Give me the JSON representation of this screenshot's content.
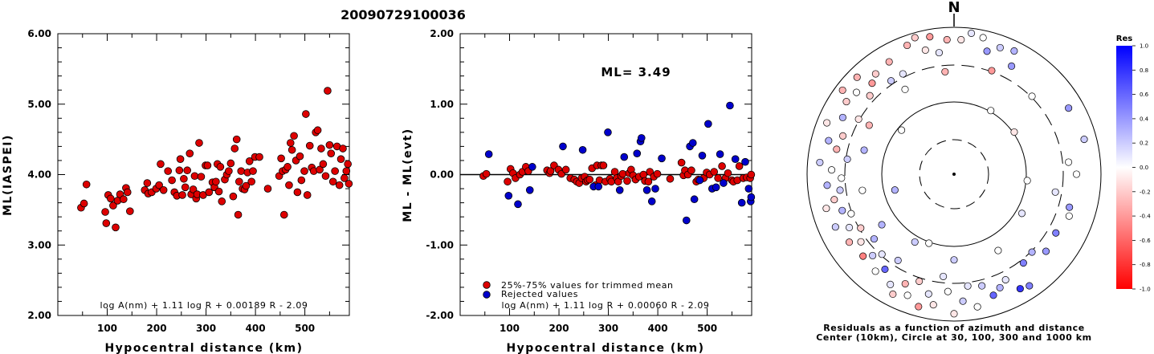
{
  "event_id": "20090729100036",
  "chart_data": [
    {
      "type": "scatter",
      "panel": "left",
      "xlabel": "Hypocentral distance (km)",
      "ylabel": "ML(IASPEI)",
      "xlim": [
        0,
        590
      ],
      "ylim": [
        2.0,
        6.0
      ],
      "xticks": [
        "100",
        "200",
        "300",
        "400",
        "500"
      ],
      "yticks": [
        "2.00",
        "3.00",
        "4.00",
        "5.00",
        "6.00"
      ],
      "formula": "log A(nm) + 1.11 log R + 0.00189 R - 2.09",
      "marker_color": "#dd0000",
      "points": [
        [
          47,
          3.53
        ],
        [
          53,
          3.59
        ],
        [
          58,
          3.86
        ],
        [
          96,
          3.47
        ],
        [
          98,
          3.31
        ],
        [
          102,
          3.71
        ],
        [
          107,
          3.66
        ],
        [
          112,
          3.56
        ],
        [
          117,
          3.25
        ],
        [
          121,
          3.63
        ],
        [
          126,
          3.72
        ],
        [
          133,
          3.65
        ],
        [
          138,
          3.81
        ],
        [
          141,
          3.75
        ],
        [
          146,
          3.48
        ],
        [
          176,
          3.78
        ],
        [
          181,
          3.88
        ],
        [
          183,
          3.73
        ],
        [
          190,
          3.75
        ],
        [
          199,
          3.8
        ],
        [
          205,
          3.85
        ],
        [
          208,
          4.15
        ],
        [
          214,
          3.78
        ],
        [
          223,
          4.05
        ],
        [
          231,
          3.92
        ],
        [
          236,
          3.75
        ],
        [
          241,
          3.7
        ],
        [
          246,
          4.06
        ],
        [
          248,
          4.22
        ],
        [
          252,
          3.71
        ],
        [
          255,
          3.94
        ],
        [
          258,
          3.82
        ],
        [
          262,
          4.06
        ],
        [
          267,
          4.3
        ],
        [
          270,
          3.72
        ],
        [
          274,
          3.79
        ],
        [
          277,
          3.98
        ],
        [
          280,
          3.66
        ],
        [
          282,
          3.72
        ],
        [
          286,
          4.45
        ],
        [
          290,
          3.97
        ],
        [
          294,
          3.71
        ],
        [
          299,
          4.13
        ],
        [
          303,
          4.13
        ],
        [
          306,
          3.75
        ],
        [
          313,
          3.89
        ],
        [
          317,
          3.82
        ],
        [
          320,
          3.9
        ],
        [
          323,
          4.15
        ],
        [
          326,
          3.76
        ],
        [
          329,
          4.11
        ],
        [
          332,
          3.62
        ],
        [
          338,
          3.93
        ],
        [
          342,
          4.0
        ],
        [
          346,
          4.05
        ],
        [
          350,
          4.16
        ],
        [
          355,
          3.69
        ],
        [
          358,
          4.37
        ],
        [
          362,
          4.5
        ],
        [
          365,
          3.43
        ],
        [
          367,
          3.9
        ],
        [
          371,
          4.05
        ],
        [
          374,
          3.8
        ],
        [
          378,
          3.79
        ],
        [
          381,
          3.84
        ],
        [
          384,
          4.03
        ],
        [
          388,
          4.19
        ],
        [
          392,
          3.9
        ],
        [
          395,
          4.05
        ],
        [
          399,
          4.25
        ],
        [
          408,
          4.25
        ],
        [
          425,
          3.8
        ],
        [
          448,
          3.98
        ],
        [
          452,
          4.23
        ],
        [
          455,
          4.05
        ],
        [
          458,
          3.43
        ],
        [
          461,
          4.07
        ],
        [
          465,
          4.11
        ],
        [
          468,
          3.85
        ],
        [
          471,
          4.45
        ],
        [
          474,
          4.35
        ],
        [
          478,
          4.55
        ],
        [
          482,
          4.2
        ],
        [
          485,
          3.75
        ],
        [
          490,
          4.26
        ],
        [
          493,
          3.92
        ],
        [
          499,
          4.05
        ],
        [
          502,
          4.86
        ],
        [
          505,
          3.71
        ],
        [
          510,
          4.41
        ],
        [
          514,
          4.1
        ],
        [
          518,
          4.05
        ],
        [
          522,
          4.6
        ],
        [
          526,
          4.63
        ],
        [
          530,
          4.07
        ],
        [
          533,
          4.37
        ],
        [
          537,
          4.15
        ],
        [
          542,
          3.98
        ],
        [
          546,
          5.19
        ],
        [
          550,
          4.42
        ],
        [
          553,
          4.3
        ],
        [
          557,
          3.9
        ],
        [
          561,
          4.05
        ],
        [
          565,
          4.4
        ],
        [
          570,
          3.85
        ],
        [
          573,
          4.22
        ],
        [
          577,
          4.37
        ],
        [
          580,
          3.95
        ],
        [
          584,
          4.05
        ],
        [
          587,
          4.15
        ],
        [
          589,
          3.87
        ]
      ]
    },
    {
      "type": "scatter",
      "panel": "middle",
      "xlabel": "Hypocentral distance (km)",
      "ylabel": "ML - ML(evt)",
      "xlim": [
        0,
        590
      ],
      "ylim": [
        -2.0,
        2.0
      ],
      "xticks": [
        "100",
        "200",
        "300",
        "400",
        "500"
      ],
      "yticks": [
        "-2.00",
        "-1.00",
        "0.00",
        "1.00",
        "2.00"
      ],
      "ml_label": "ML= 3.49",
      "formula": "log A(nm) + 1.11 log R + 0.00060 R - 2.09",
      "legend": [
        "25%-75% values for trimmed mean",
        "Rejected values"
      ],
      "legend_placement": "bottom-left",
      "zero_line": true,
      "colors": {
        "kept": "#dd0000",
        "rejected": "#0000cc"
      },
      "kept": [
        [
          47,
          -0.02
        ],
        [
          53,
          0.01
        ],
        [
          96,
          -0.1
        ],
        [
          102,
          0.08
        ],
        [
          107,
          0.02
        ],
        [
          112,
          -0.05
        ],
        [
          121,
          0.0
        ],
        [
          126,
          0.04
        ],
        [
          133,
          0.11
        ],
        [
          138,
          0.05
        ],
        [
          176,
          0.06
        ],
        [
          181,
          0.02
        ],
        [
          183,
          0.05
        ],
        [
          190,
          0.13
        ],
        [
          199,
          0.07
        ],
        [
          205,
          0.01
        ],
        [
          214,
          0.07
        ],
        [
          223,
          -0.05
        ],
        [
          231,
          -0.07
        ],
        [
          236,
          -0.1
        ],
        [
          241,
          -0.12
        ],
        [
          246,
          -0.05
        ],
        [
          252,
          -0.03
        ],
        [
          255,
          -0.1
        ],
        [
          258,
          -0.08
        ],
        [
          262,
          -0.07
        ],
        [
          267,
          0.09
        ],
        [
          274,
          -0.15
        ],
        [
          277,
          0.13
        ],
        [
          282,
          -0.08
        ],
        [
          286,
          0.13
        ],
        [
          290,
          0.13
        ],
        [
          294,
          -0.1
        ],
        [
          303,
          -0.06
        ],
        [
          306,
          -0.1
        ],
        [
          313,
          0.04
        ],
        [
          317,
          -0.05
        ],
        [
          320,
          -0.1
        ],
        [
          326,
          -0.02
        ],
        [
          329,
          0.01
        ],
        [
          338,
          -0.09
        ],
        [
          342,
          0.02
        ],
        [
          346,
          0.07
        ],
        [
          350,
          -0.01
        ],
        [
          355,
          -0.07
        ],
        [
          362,
          -0.03
        ],
        [
          371,
          0.0
        ],
        [
          374,
          -0.09
        ],
        [
          381,
          -0.1
        ],
        [
          384,
          0.04
        ],
        [
          392,
          -0.03
        ],
        [
          399,
          0.01
        ],
        [
          425,
          -0.06
        ],
        [
          448,
          0.17
        ],
        [
          452,
          -0.01
        ],
        [
          455,
          0.06
        ],
        [
          461,
          0.0
        ],
        [
          468,
          0.06
        ],
        [
          478,
          -0.1
        ],
        [
          482,
          -0.07
        ],
        [
          493,
          -0.05
        ],
        [
          499,
          0.03
        ],
        [
          505,
          0.0
        ],
        [
          514,
          0.04
        ],
        [
          522,
          -0.05
        ],
        [
          530,
          0.12
        ],
        [
          537,
          -0.05
        ],
        [
          542,
          0.02
        ],
        [
          550,
          -0.08
        ],
        [
          553,
          -0.1
        ],
        [
          561,
          -0.08
        ],
        [
          565,
          0.12
        ],
        [
          573,
          -0.05
        ],
        [
          580,
          -0.04
        ],
        [
          587,
          -0.05
        ],
        [
          589,
          0.0
        ]
      ],
      "rejected": [
        [
          58,
          0.29
        ],
        [
          98,
          -0.3
        ],
        [
          117,
          -0.42
        ],
        [
          141,
          -0.22
        ],
        [
          146,
          0.11
        ],
        [
          208,
          0.4
        ],
        [
          248,
          0.35
        ],
        [
          270,
          -0.17
        ],
        [
          280,
          -0.17
        ],
        [
          299,
          0.6
        ],
        [
          323,
          -0.22
        ],
        [
          332,
          0.25
        ],
        [
          358,
          0.3
        ],
        [
          365,
          0.47
        ],
        [
          367,
          0.52
        ],
        [
          378,
          -0.22
        ],
        [
          388,
          -0.38
        ],
        [
          395,
          -0.2
        ],
        [
          408,
          0.23
        ],
        [
          458,
          -0.65
        ],
        [
          465,
          0.4
        ],
        [
          471,
          0.45
        ],
        [
          474,
          -0.35
        ],
        [
          485,
          -0.08
        ],
        [
          490,
          0.27
        ],
        [
          502,
          0.72
        ],
        [
          510,
          -0.2
        ],
        [
          518,
          -0.18
        ],
        [
          526,
          0.29
        ],
        [
          533,
          -0.12
        ],
        [
          546,
          0.98
        ],
        [
          557,
          0.22
        ],
        [
          570,
          -0.4
        ],
        [
          577,
          0.18
        ],
        [
          584,
          -0.2
        ],
        [
          588,
          -0.38
        ],
        [
          589,
          -0.32
        ]
      ]
    },
    {
      "type": "polar-scatter",
      "panel": "right",
      "north_label": "N",
      "caption_line1": "Residuals as a function of azimuth and distance",
      "caption_line2": "Center (10km), Circle at 30, 100, 300 and 1000 km",
      "colorbar_title": "Res",
      "colorbar_ticks": [
        "1.0",
        "0.8",
        "0.6",
        "0.4",
        "0.2",
        "0.0",
        "-0.2",
        "-0.4",
        "-0.6",
        "-0.8",
        "-1.0"
      ],
      "colorbar_range": [
        -1.0,
        1.0
      ],
      "stations": [
        [
          3,
          55,
          -0.1
        ],
        [
          7,
          58,
          0.1
        ],
        [
          12,
          57,
          0.0
        ],
        [
          15,
          52,
          0.4
        ],
        [
          20,
          55,
          0.2
        ],
        [
          26,
          56,
          0.3
        ],
        [
          28,
          50,
          0.4
        ],
        [
          340,
          56,
          -0.3
        ],
        [
          344,
          58,
          -0.2
        ],
        [
          347,
          52,
          -0.1
        ],
        [
          350,
          57,
          -0.4
        ],
        [
          353,
          50,
          0.1
        ],
        [
          357,
          55,
          -0.3
        ],
        [
          330,
          53,
          -0.3
        ],
        [
          333,
          46,
          0.1
        ],
        [
          326,
          46,
          0.2
        ],
        [
          322,
          52,
          -0.2
        ],
        [
          318,
          50,
          -0.4
        ],
        [
          315,
          56,
          -0.3
        ],
        [
          313,
          47,
          -0.2
        ],
        [
          310,
          52,
          0.0
        ],
        [
          307,
          57,
          -0.3
        ],
        [
          304,
          53,
          -0.2
        ],
        [
          300,
          45,
          -0.1
        ],
        [
          297,
          51,
          0.3
        ],
        [
          292,
          56,
          -0.1
        ],
        [
          289,
          48,
          -0.2
        ],
        [
          285,
          53,
          0.3
        ],
        [
          282,
          49,
          -0.3
        ],
        [
          278,
          44,
          0.2
        ],
        [
          275,
          55,
          0.2
        ],
        [
          272,
          50,
          0.0
        ],
        [
          268,
          46,
          0.0
        ],
        [
          265,
          52,
          0.3
        ],
        [
          262,
          47,
          0.2
        ],
        [
          258,
          50,
          -0.2
        ],
        [
          255,
          54,
          -0.1
        ],
        [
          252,
          48,
          0.3
        ],
        [
          249,
          45,
          0.0
        ],
        [
          246,
          53,
          0.2
        ],
        [
          243,
          48,
          0.1
        ],
        [
          240,
          44,
          -0.2
        ],
        [
          237,
          51,
          -0.3
        ],
        [
          234,
          47,
          -0.1
        ],
        [
          231,
          42,
          0.3
        ],
        [
          228,
          50,
          -0.5
        ],
        [
          225,
          47,
          0.2
        ],
        [
          222,
          44,
          0.1
        ],
        [
          219,
          51,
          0.0
        ],
        [
          216,
          48,
          0.6
        ],
        [
          213,
          42,
          0.2
        ],
        [
          210,
          52,
          0.1
        ],
        [
          207,
          55,
          -0.2
        ],
        [
          204,
          49,
          -0.3
        ],
        [
          201,
          53,
          0.0
        ],
        [
          198,
          46,
          -0.2
        ],
        [
          195,
          56,
          -0.4
        ],
        [
          192,
          50,
          0.1
        ],
        [
          189,
          54,
          -0.1
        ],
        [
          186,
          42,
          0.1
        ],
        [
          183,
          48,
          0.0
        ],
        [
          180,
          57,
          -0.1
        ],
        [
          176,
          52,
          0.2
        ],
        [
          173,
          46,
          0.1
        ],
        [
          170,
          55,
          0.0
        ],
        [
          166,
          47,
          0.2
        ],
        [
          162,
          52,
          0.6
        ],
        [
          158,
          50,
          0.3
        ],
        [
          154,
          48,
          0.1
        ],
        [
          150,
          54,
          0.8
        ],
        [
          146,
          55,
          0.5
        ],
        [
          142,
          46,
          0.5
        ],
        [
          135,
          45,
          0.3
        ],
        [
          130,
          49,
          0.4
        ],
        [
          120,
          48,
          0.5
        ],
        [
          110,
          50,
          0.0
        ],
        [
          106,
          49,
          0.4
        ],
        [
          100,
          42,
          0.1
        ],
        [
          90,
          50,
          0.0
        ],
        [
          84,
          47,
          0.0
        ],
        [
          75,
          55,
          0.2
        ],
        [
          60,
          54,
          0.4
        ],
        [
          45,
          45,
          0.0
        ],
        [
          20,
          45,
          -0.4
        ],
        [
          355,
          42,
          -0.3
        ],
        [
          330,
          40,
          0.0
        ],
        [
          300,
          40,
          -0.3
        ],
        [
          285,
          38,
          0.3
        ],
        [
          260,
          38,
          0.0
        ],
        [
          235,
          36,
          0.3
        ],
        [
          210,
          32,
          0.2
        ],
        [
          180,
          35,
          0.2
        ],
        [
          150,
          36,
          0.0
        ],
        [
          120,
          32,
          0.1
        ],
        [
          95,
          30,
          0.0
        ],
        [
          55,
          30,
          -0.1
        ],
        [
          30,
          30,
          0.0
        ],
        [
          310,
          28,
          0.0
        ],
        [
          255,
          25,
          0.3
        ],
        [
          200,
          30,
          0.0
        ]
      ]
    }
  ]
}
